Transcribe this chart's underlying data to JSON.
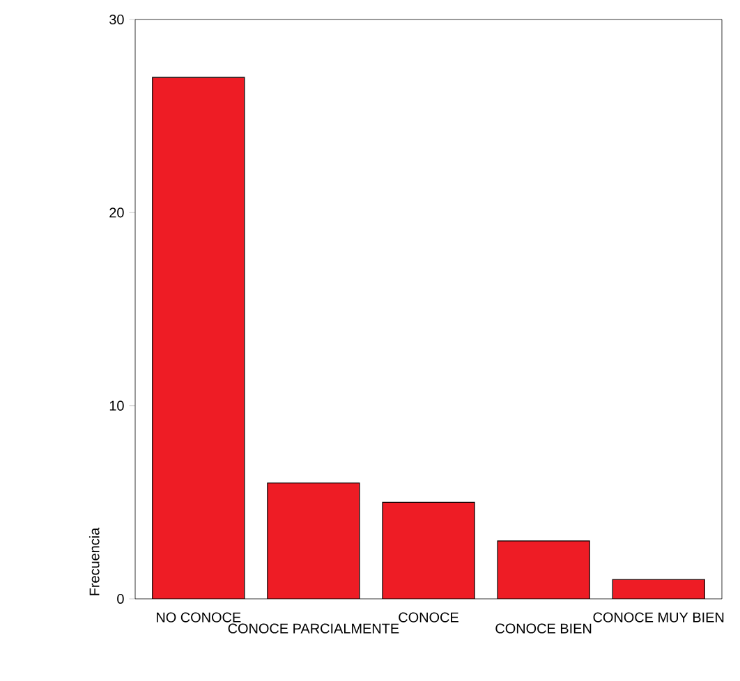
{
  "chart_data": {
    "type": "bar",
    "ylabel": "Frecuencia",
    "categories": [
      "NO CONOCE",
      "CONOCE PARCIALMENTE",
      "CONOCE",
      "CONOCE BIEN",
      "CONOCE MUY BIEN"
    ],
    "values": [
      27,
      6,
      5,
      3,
      1
    ],
    "color": "#ee1c25",
    "ylim": [
      0,
      30
    ],
    "yticks": [
      0,
      10,
      20,
      30
    ],
    "grid": false
  }
}
